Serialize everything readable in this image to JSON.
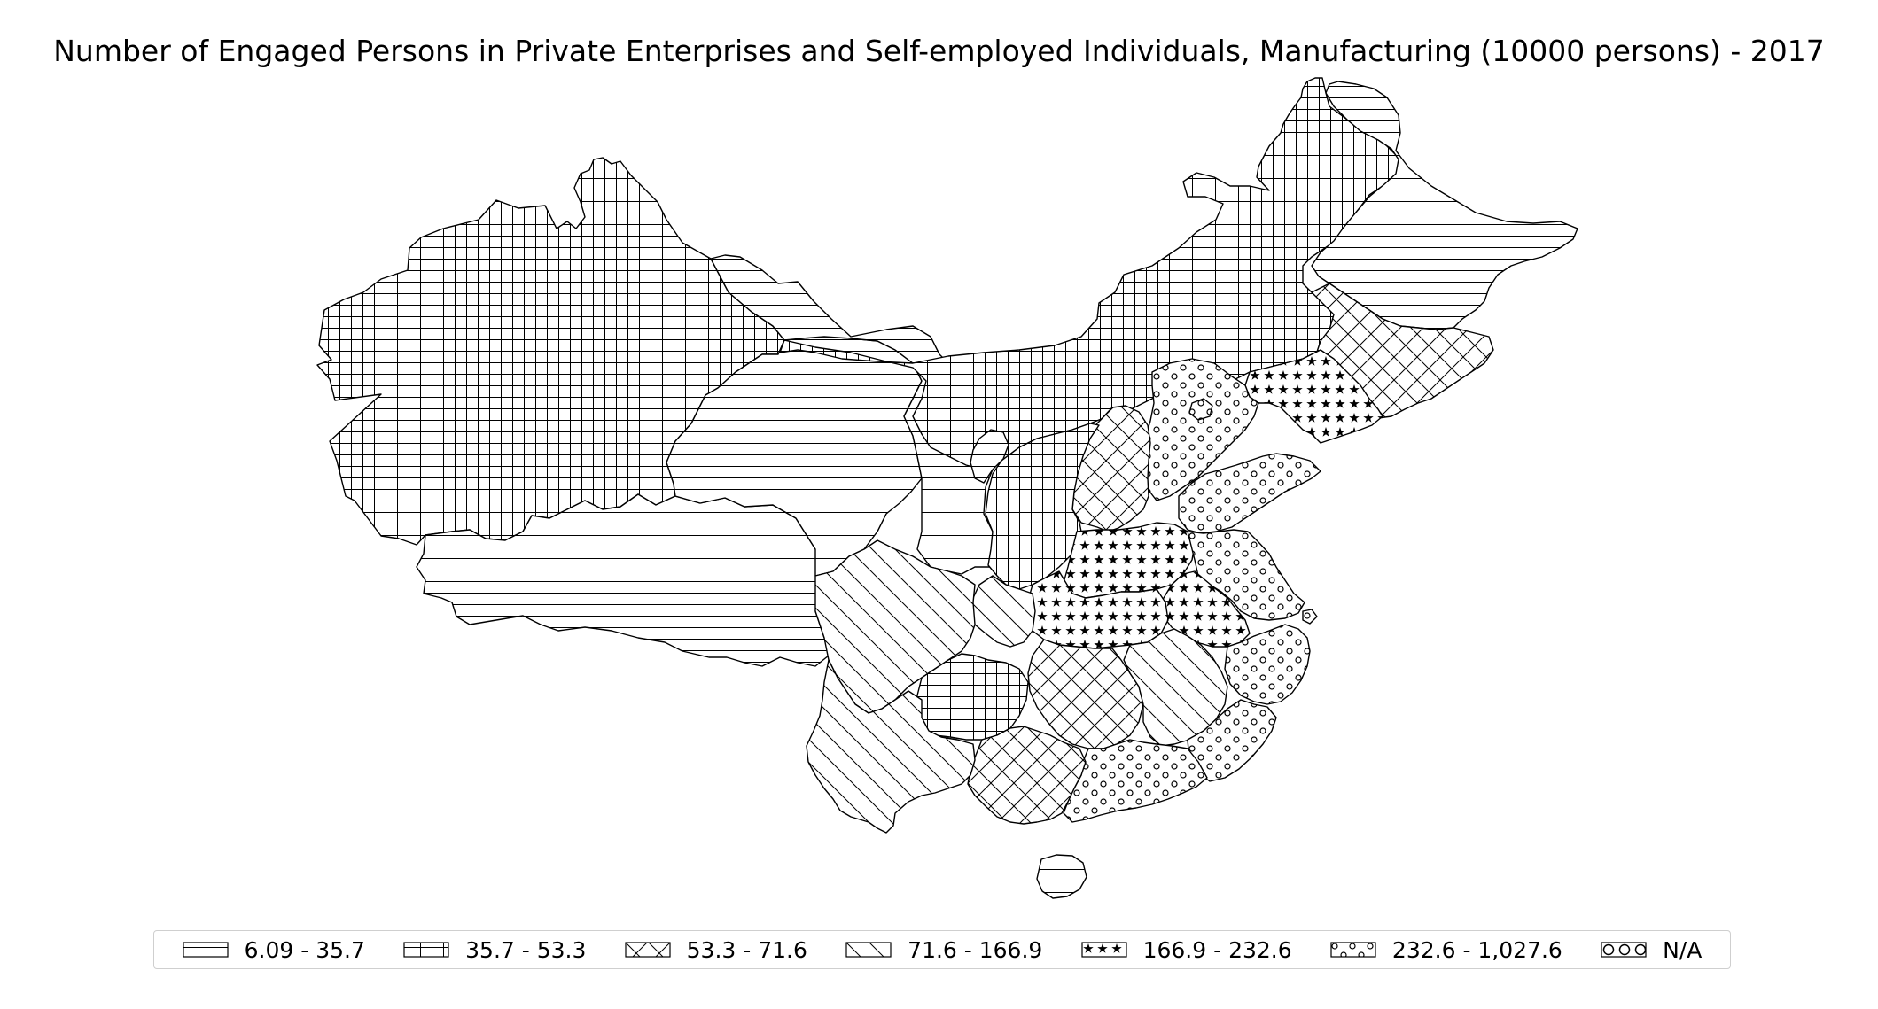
{
  "title": "Number of Engaged Persons in Private Enterprises and Self-employed Individuals, Manufacturing (10000 persons) - 2017",
  "legend": [
    {
      "id": "c1",
      "label": "6.09 - 35.7",
      "pattern": "horizontal-lines"
    },
    {
      "id": "c2",
      "label": "35.7 - 53.3",
      "pattern": "grid"
    },
    {
      "id": "c3",
      "label": "53.3 - 71.6",
      "pattern": "cross-hatch"
    },
    {
      "id": "c4",
      "label": "71.6 - 166.9",
      "pattern": "diagonal-lines"
    },
    {
      "id": "c5",
      "label": "166.9 - 232.6",
      "pattern": "stars"
    },
    {
      "id": "c6",
      "label": "232.6 - 1,027.6",
      "pattern": "small-circles"
    },
    {
      "id": "na",
      "label": "N/A",
      "pattern": "large-circles"
    }
  ],
  "colors": {
    "ink": "#000000",
    "background": "#ffffff",
    "legend_border": "#cfcfcf"
  }
}
